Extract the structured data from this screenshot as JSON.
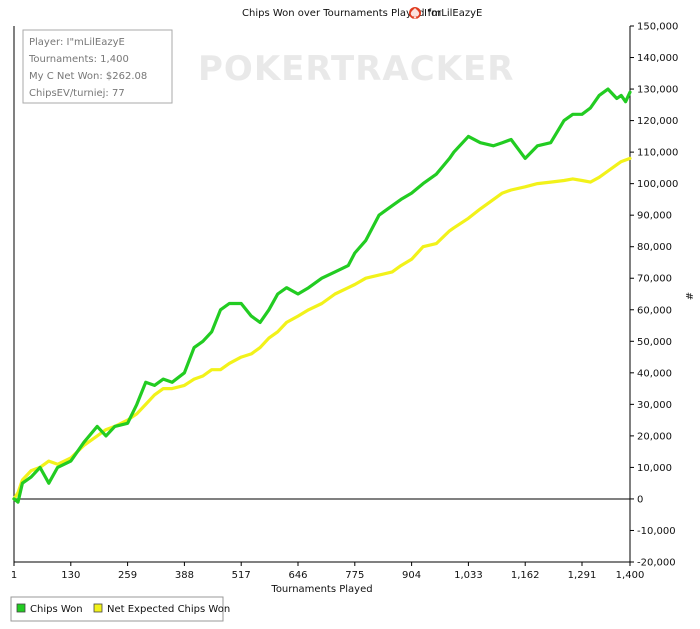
{
  "chart_data": {
    "type": "line",
    "title": "Chips Won over Tournaments Played for",
    "player_name": "I\"mLilEazyE",
    "xlabel": "Tournaments Played",
    "ylabel": "#",
    "xlim": [
      1,
      1400
    ],
    "ylim": [
      -20000,
      150000
    ],
    "x_ticks": [
      1,
      130,
      259,
      388,
      517,
      646,
      775,
      904,
      1033,
      1162,
      1291,
      1400
    ],
    "x_tick_labels": [
      "1",
      "130",
      "259",
      "388",
      "517",
      "646",
      "775",
      "904",
      "1,033",
      "1,162",
      "1,291",
      "1,400"
    ],
    "y_ticks": [
      -20000,
      -10000,
      0,
      10000,
      20000,
      30000,
      40000,
      50000,
      60000,
      70000,
      80000,
      90000,
      100000,
      110000,
      120000,
      130000,
      140000,
      150000
    ],
    "y_tick_labels": [
      "-20,000",
      "-10,000",
      "0",
      "10,000",
      "20,000",
      "30,000",
      "40,000",
      "50,000",
      "60,000",
      "70,000",
      "80,000",
      "90,000",
      "100,000",
      "110,000",
      "120,000",
      "130,000",
      "140,000",
      "150,000"
    ],
    "grid": false,
    "legend_position": "bottom",
    "x": [
      1,
      10,
      20,
      40,
      60,
      80,
      100,
      130,
      160,
      190,
      210,
      230,
      259,
      280,
      300,
      320,
      340,
      360,
      388,
      410,
      430,
      450,
      470,
      490,
      517,
      540,
      560,
      580,
      600,
      620,
      646,
      670,
      700,
      730,
      760,
      775,
      800,
      830,
      860,
      880,
      904,
      930,
      960,
      990,
      1000,
      1033,
      1060,
      1090,
      1110,
      1130,
      1162,
      1190,
      1220,
      1250,
      1270,
      1291,
      1310,
      1330,
      1350,
      1370,
      1380,
      1390,
      1400
    ],
    "series": [
      {
        "name": "Chips Won",
        "color": "#22cc22",
        "values": [
          0,
          -1000,
          5000,
          7000,
          10000,
          5000,
          10000,
          12000,
          18000,
          23000,
          20000,
          23000,
          24000,
          30000,
          37000,
          36000,
          38000,
          37000,
          40000,
          48000,
          50000,
          53000,
          60000,
          62000,
          62000,
          58000,
          56000,
          60000,
          65000,
          67000,
          65000,
          67000,
          70000,
          72000,
          74000,
          78000,
          82000,
          90000,
          93000,
          95000,
          97000,
          100000,
          103000,
          108000,
          110000,
          115000,
          113000,
          112000,
          113000,
          114000,
          108000,
          112000,
          113000,
          120000,
          122000,
          122000,
          124000,
          128000,
          130000,
          127000,
          128000,
          126000,
          129000
        ]
      },
      {
        "name": "Net Expected Chips Won",
        "color": "#f2f21a",
        "values": [
          0,
          2000,
          6000,
          9000,
          10000,
          12000,
          11000,
          13000,
          17000,
          20000,
          22000,
          23000,
          25000,
          27000,
          30000,
          33000,
          35000,
          35000,
          36000,
          38000,
          39000,
          41000,
          41000,
          43000,
          45000,
          46000,
          48000,
          51000,
          53000,
          56000,
          58000,
          60000,
          62000,
          65000,
          67000,
          68000,
          70000,
          71000,
          72000,
          74000,
          76000,
          80000,
          81000,
          85000,
          86000,
          89000,
          92000,
          95000,
          97000,
          98000,
          99000,
          100000,
          100500,
          101000,
          101500,
          101000,
          100500,
          102000,
          104000,
          106000,
          107000,
          107500,
          108000
        ]
      }
    ]
  },
  "stats_box": {
    "player": "Player: I\"mLilEazyE",
    "tournaments": "Tournaments: 1,400",
    "net_won": "My C Net Won: $262.08",
    "chips_ev": "ChipsEV/turniej: 77"
  },
  "watermark": "POKERTRACKER",
  "legend": {
    "items": [
      {
        "label": "Chips Won",
        "color": "#22cc22"
      },
      {
        "label": "Net Expected Chips Won",
        "color": "#f2f21a"
      }
    ]
  },
  "colors": {
    "axis": "#000000",
    "border": "#999999",
    "title_icon": "#e03b1f"
  }
}
